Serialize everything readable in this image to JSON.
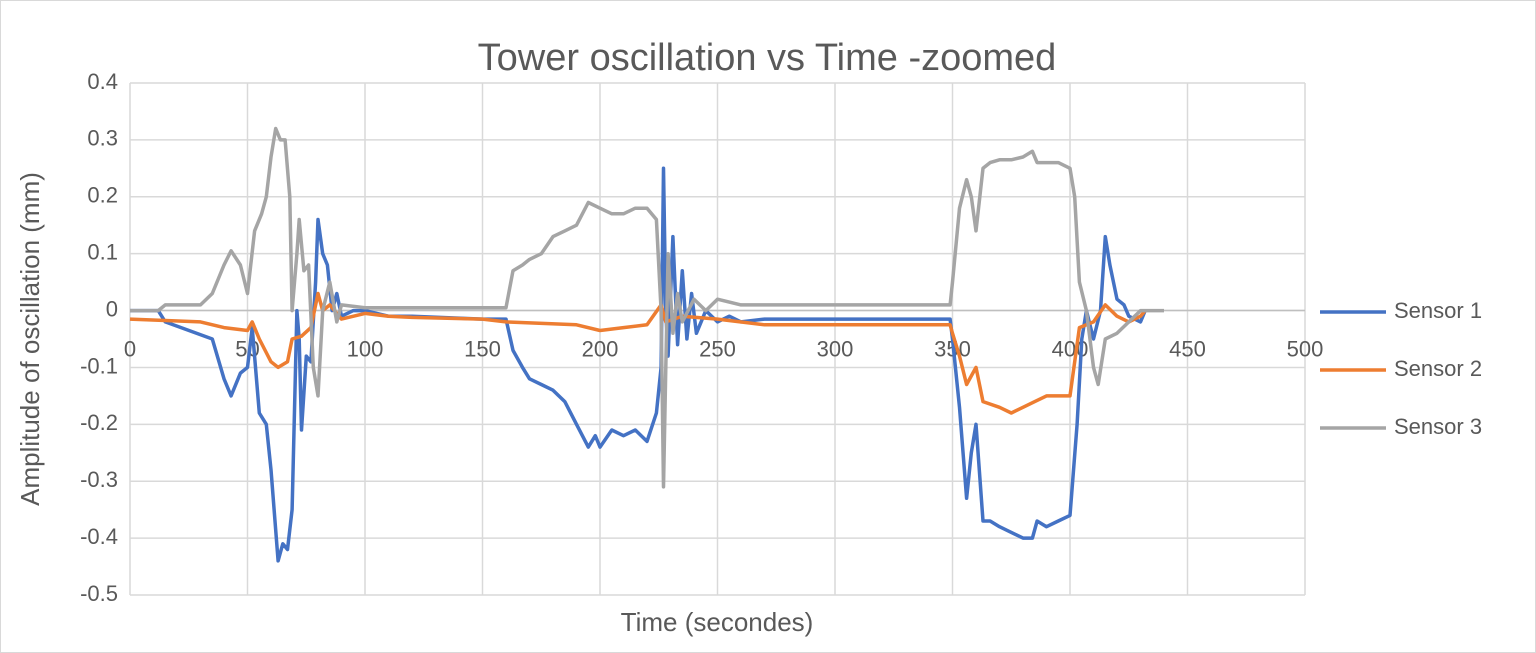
{
  "chart_data": {
    "type": "line",
    "title": "Tower oscillation vs Time -zoomed",
    "x_label": "Time (secondes)",
    "y_label": "Amplitude of oscillation (mm)",
    "xlim": [
      0,
      500
    ],
    "xticks": [
      0,
      50,
      100,
      150,
      200,
      250,
      300,
      350,
      400,
      450,
      500
    ],
    "ylim": [
      -0.5,
      0.4
    ],
    "yticks": [
      0.4,
      0.3,
      0.2,
      0.1,
      0,
      -0.1,
      -0.2,
      -0.3,
      -0.4,
      -0.5
    ],
    "grid": true,
    "legend": "right",
    "series": [
      {
        "name": "Sensor 1",
        "color": "#4472c4",
        "x": [
          0,
          12,
          15,
          35,
          40,
          43,
          47,
          50,
          52,
          55,
          58,
          60,
          63,
          65,
          67,
          69,
          71,
          72,
          73,
          75,
          77,
          79,
          80,
          82,
          84,
          86,
          88,
          90,
          95,
          100,
          110,
          120,
          150,
          160,
          163,
          167,
          170,
          175,
          180,
          185,
          190,
          195,
          198,
          200,
          205,
          210,
          215,
          220,
          224,
          226,
          227,
          228,
          229,
          231,
          233,
          235,
          237,
          239,
          241,
          245,
          250,
          255,
          260,
          270,
          300,
          349,
          350,
          353,
          356,
          358,
          360,
          363,
          366,
          370,
          375,
          380,
          384,
          386,
          390,
          395,
          400,
          403,
          405,
          407,
          410,
          413,
          415,
          417,
          420,
          423,
          425,
          430,
          432
        ],
        "values": [
          0,
          0,
          -0.02,
          -0.05,
          -0.12,
          -0.15,
          -0.11,
          -0.1,
          -0.03,
          -0.18,
          -0.2,
          -0.28,
          -0.44,
          -0.41,
          -0.42,
          -0.35,
          0,
          -0.05,
          -0.21,
          -0.08,
          -0.09,
          0.05,
          0.16,
          0.1,
          0.08,
          0,
          0.03,
          -0.01,
          0,
          0,
          -0.01,
          -0.01,
          -0.015,
          -0.015,
          -0.07,
          -0.1,
          -0.12,
          -0.13,
          -0.14,
          -0.16,
          -0.2,
          -0.24,
          -0.22,
          -0.24,
          -0.21,
          -0.22,
          -0.21,
          -0.23,
          -0.18,
          -0.1,
          0.25,
          0,
          -0.08,
          0.13,
          -0.06,
          0.07,
          -0.05,
          0.03,
          -0.04,
          0,
          -0.02,
          -0.01,
          -0.02,
          -0.015,
          -0.015,
          -0.015,
          -0.05,
          -0.17,
          -0.33,
          -0.25,
          -0.2,
          -0.37,
          -0.37,
          -0.38,
          -0.39,
          -0.4,
          -0.4,
          -0.37,
          -0.38,
          -0.37,
          -0.36,
          -0.2,
          -0.05,
          0,
          -0.05,
          0,
          0.13,
          0.08,
          0.02,
          0.01,
          -0.01,
          -0.02,
          0
        ]
      },
      {
        "name": "Sensor 2",
        "color": "#ed7d31",
        "x": [
          0,
          30,
          40,
          50,
          52,
          55,
          60,
          63,
          67,
          69,
          73,
          77,
          80,
          82,
          85,
          90,
          100,
          110,
          120,
          150,
          160,
          190,
          200,
          210,
          220,
          226,
          228,
          235,
          250,
          270,
          300,
          349,
          350,
          353,
          356,
          360,
          363,
          370,
          375,
          380,
          385,
          390,
          400,
          404,
          410,
          415,
          420,
          425,
          430,
          432
        ],
        "values": [
          -0.015,
          -0.02,
          -0.03,
          -0.035,
          -0.02,
          -0.05,
          -0.09,
          -0.1,
          -0.09,
          -0.05,
          -0.045,
          -0.03,
          0.03,
          0,
          0.01,
          -0.015,
          -0.005,
          -0.01,
          -0.012,
          -0.015,
          -0.02,
          -0.025,
          -0.035,
          -0.03,
          -0.025,
          0.01,
          -0.02,
          -0.01,
          -0.015,
          -0.025,
          -0.025,
          -0.025,
          -0.04,
          -0.08,
          -0.13,
          -0.1,
          -0.16,
          -0.17,
          -0.18,
          -0.17,
          -0.16,
          -0.15,
          -0.15,
          -0.03,
          -0.02,
          0.01,
          -0.01,
          -0.02,
          -0.01,
          0
        ]
      },
      {
        "name": "Sensor 3",
        "color": "#a5a5a5",
        "x": [
          0,
          12,
          15,
          30,
          35,
          40,
          43,
          47,
          50,
          53,
          56,
          58,
          60,
          62,
          64,
          66,
          68,
          69,
          71,
          72,
          74,
          76,
          78,
          80,
          82,
          85,
          88,
          90,
          100,
          150,
          160,
          163,
          167,
          170,
          175,
          180,
          185,
          190,
          195,
          200,
          205,
          210,
          215,
          220,
          224,
          226,
          227,
          228,
          229,
          231,
          233,
          235,
          240,
          245,
          250,
          260,
          270,
          300,
          349,
          350,
          353,
          356,
          358,
          360,
          363,
          366,
          370,
          375,
          380,
          384,
          386,
          390,
          395,
          400,
          402,
          404,
          407,
          410,
          412,
          415,
          420,
          425,
          430,
          440
        ],
        "values": [
          0,
          0,
          0.01,
          0.01,
          0.03,
          0.08,
          0.105,
          0.08,
          0.03,
          0.14,
          0.17,
          0.2,
          0.27,
          0.32,
          0.3,
          0.3,
          0.2,
          0,
          0.1,
          0.16,
          0.07,
          0.08,
          -0.1,
          -0.15,
          0,
          0.05,
          -0.02,
          0.01,
          0.005,
          0.005,
          0.005,
          0.07,
          0.08,
          0.09,
          0.1,
          0.13,
          0.14,
          0.15,
          0.19,
          0.18,
          0.17,
          0.17,
          0.18,
          0.18,
          0.16,
          0,
          -0.31,
          -0.1,
          0.1,
          -0.04,
          0.03,
          -0.02,
          0.02,
          0,
          0.02,
          0.01,
          0.01,
          0.01,
          0.01,
          0.05,
          0.18,
          0.23,
          0.2,
          0.14,
          0.25,
          0.26,
          0.265,
          0.265,
          0.27,
          0.28,
          0.26,
          0.26,
          0.26,
          0.25,
          0.2,
          0.05,
          0,
          -0.1,
          -0.13,
          -0.05,
          -0.04,
          -0.02,
          0,
          0
        ]
      }
    ]
  }
}
